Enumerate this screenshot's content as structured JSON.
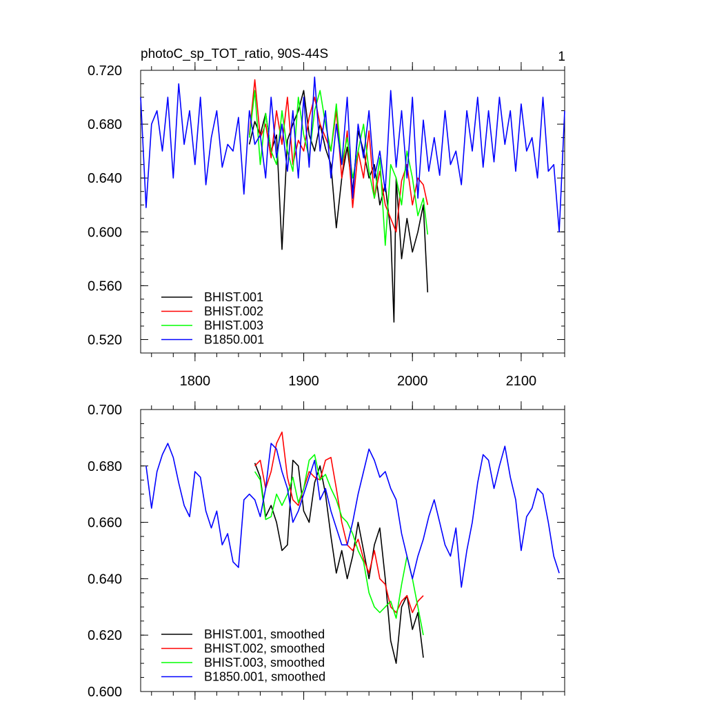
{
  "chart_data": [
    {
      "type": "line",
      "title": "photoC_sp_TOT_ratio, 90S-44S",
      "corner_label": "1",
      "xlabel": "",
      "ylabel": "",
      "xlim": [
        1750,
        2140
      ],
      "ylim": [
        0.51,
        0.72
      ],
      "yticks": [
        0.52,
        0.56,
        0.6,
        0.64,
        0.68,
        0.72
      ],
      "ytick_labels": [
        "0.520",
        "0.560",
        "0.600",
        "0.640",
        "0.680",
        "0.720"
      ],
      "xticks": [
        1800,
        1900,
        2000,
        2100
      ],
      "xtick_labels": [
        "1800",
        "1900",
        "2000",
        "2100"
      ],
      "legend_position": "bottom-left",
      "grid": false,
      "series": [
        {
          "name": "BHIST.001",
          "color": "#000000",
          "x": [
            1850,
            1855,
            1860,
            1865,
            1870,
            1875,
            1880,
            1885,
            1890,
            1895,
            1900,
            1905,
            1910,
            1915,
            1920,
            1925,
            1930,
            1935,
            1940,
            1945,
            1950,
            1955,
            1960,
            1965,
            1970,
            1975,
            1980,
            1983,
            1985,
            1990,
            1995,
            2000,
            2005,
            2010,
            2014
          ],
          "y": [
            0.665,
            0.682,
            0.672,
            0.688,
            0.66,
            0.672,
            0.587,
            0.668,
            0.68,
            0.69,
            0.705,
            0.672,
            0.66,
            0.68,
            0.662,
            0.65,
            0.603,
            0.64,
            0.663,
            0.63,
            0.675,
            0.66,
            0.64,
            0.65,
            0.62,
            0.635,
            0.6,
            0.533,
            0.64,
            0.58,
            0.61,
            0.585,
            0.6,
            0.62,
            0.555
          ]
        },
        {
          "name": "BHIST.002",
          "color": "#ff0000",
          "x": [
            1850,
            1855,
            1860,
            1865,
            1870,
            1875,
            1880,
            1885,
            1890,
            1895,
            1900,
            1905,
            1910,
            1915,
            1920,
            1925,
            1930,
            1935,
            1940,
            1945,
            1950,
            1955,
            1960,
            1965,
            1970,
            1975,
            1980,
            1985,
            1990,
            1995,
            2000,
            2005,
            2010,
            2014
          ],
          "y": [
            0.672,
            0.713,
            0.67,
            0.68,
            0.655,
            0.69,
            0.665,
            0.7,
            0.65,
            0.668,
            0.66,
            0.685,
            0.7,
            0.68,
            0.67,
            0.66,
            0.69,
            0.64,
            0.675,
            0.618,
            0.66,
            0.64,
            0.675,
            0.625,
            0.645,
            0.62,
            0.61,
            0.6,
            0.638,
            0.65,
            0.62,
            0.64,
            0.635,
            0.62
          ]
        },
        {
          "name": "BHIST.003",
          "color": "#00ff00",
          "x": [
            1850,
            1855,
            1860,
            1865,
            1870,
            1875,
            1880,
            1885,
            1890,
            1895,
            1900,
            1905,
            1910,
            1915,
            1920,
            1925,
            1930,
            1935,
            1940,
            1945,
            1950,
            1955,
            1960,
            1965,
            1970,
            1975,
            1980,
            1985,
            1990,
            1995,
            2000,
            2005,
            2010,
            2014
          ],
          "y": [
            0.67,
            0.705,
            0.65,
            0.688,
            0.66,
            0.65,
            0.69,
            0.66,
            0.645,
            0.7,
            0.672,
            0.655,
            0.69,
            0.705,
            0.68,
            0.66,
            0.695,
            0.65,
            0.67,
            0.64,
            0.66,
            0.68,
            0.645,
            0.625,
            0.655,
            0.59,
            0.65,
            0.64,
            0.62,
            0.66,
            0.64,
            0.612,
            0.625,
            0.598
          ]
        },
        {
          "name": "B1850.001",
          "color": "#0000ff",
          "x": [
            1750,
            1755,
            1760,
            1765,
            1770,
            1775,
            1780,
            1785,
            1790,
            1795,
            1800,
            1805,
            1810,
            1815,
            1820,
            1825,
            1830,
            1835,
            1840,
            1845,
            1850,
            1855,
            1860,
            1865,
            1870,
            1875,
            1880,
            1885,
            1890,
            1895,
            1900,
            1905,
            1910,
            1915,
            1920,
            1925,
            1930,
            1935,
            1940,
            1945,
            1950,
            1955,
            1960,
            1965,
            1970,
            1975,
            1980,
            1985,
            1990,
            1995,
            2000,
            2005,
            2010,
            2015,
            2020,
            2025,
            2030,
            2035,
            2040,
            2045,
            2050,
            2055,
            2060,
            2065,
            2070,
            2075,
            2080,
            2085,
            2090,
            2095,
            2100,
            2105,
            2110,
            2115,
            2120,
            2125,
            2130,
            2135,
            2140
          ],
          "y": [
            0.7,
            0.618,
            0.68,
            0.69,
            0.66,
            0.7,
            0.64,
            0.71,
            0.665,
            0.69,
            0.65,
            0.7,
            0.635,
            0.67,
            0.69,
            0.648,
            0.665,
            0.66,
            0.685,
            0.628,
            0.69,
            0.665,
            0.672,
            0.64,
            0.7,
            0.655,
            0.68,
            0.645,
            0.69,
            0.64,
            0.7,
            0.648,
            0.715,
            0.66,
            0.69,
            0.64,
            0.68,
            0.65,
            0.7,
            0.625,
            0.68,
            0.655,
            0.69,
            0.64,
            0.66,
            0.63,
            0.705,
            0.648,
            0.69,
            0.64,
            0.7,
            0.625,
            0.683,
            0.645,
            0.67,
            0.642,
            0.69,
            0.65,
            0.66,
            0.635,
            0.69,
            0.66,
            0.7,
            0.648,
            0.69,
            0.652,
            0.7,
            0.665,
            0.69,
            0.645,
            0.695,
            0.66,
            0.67,
            0.64,
            0.7,
            0.645,
            0.65,
            0.6,
            0.69
          ]
        }
      ]
    },
    {
      "type": "line",
      "title": "",
      "xlabel": "",
      "ylabel": "",
      "xlim": [
        1750,
        2140
      ],
      "ylim": [
        0.6,
        0.7
      ],
      "yticks": [
        0.6,
        0.62,
        0.64,
        0.66,
        0.68,
        0.7
      ],
      "ytick_labels": [
        "0.600",
        "0.620",
        "0.640",
        "0.660",
        "0.680",
        "0.700"
      ],
      "xticks": [
        1800,
        1900,
        2000,
        2100
      ],
      "legend_position": "bottom-left",
      "grid": false,
      "series": [
        {
          "name": "BHIST.001, smoothed",
          "color": "#000000",
          "x": [
            1855,
            1860,
            1865,
            1870,
            1875,
            1880,
            1885,
            1890,
            1895,
            1900,
            1905,
            1910,
            1915,
            1920,
            1925,
            1930,
            1935,
            1940,
            1945,
            1950,
            1955,
            1960,
            1965,
            1970,
            1975,
            1980,
            1985,
            1990,
            1995,
            2000,
            2005,
            2010
          ],
          "y": [
            0.681,
            0.676,
            0.662,
            0.666,
            0.66,
            0.65,
            0.652,
            0.682,
            0.68,
            0.664,
            0.66,
            0.674,
            0.68,
            0.67,
            0.655,
            0.642,
            0.65,
            0.64,
            0.648,
            0.66,
            0.65,
            0.64,
            0.652,
            0.658,
            0.64,
            0.618,
            0.61,
            0.63,
            0.634,
            0.622,
            0.628,
            0.612
          ]
        },
        {
          "name": "BHIST.002, smoothed",
          "color": "#ff0000",
          "x": [
            1855,
            1860,
            1865,
            1870,
            1875,
            1880,
            1885,
            1890,
            1895,
            1900,
            1905,
            1910,
            1915,
            1920,
            1925,
            1930,
            1935,
            1940,
            1945,
            1950,
            1955,
            1960,
            1965,
            1970,
            1975,
            1980,
            1985,
            1990,
            1995,
            2000,
            2005,
            2010
          ],
          "y": [
            0.68,
            0.682,
            0.672,
            0.678,
            0.688,
            0.692,
            0.676,
            0.668,
            0.666,
            0.672,
            0.678,
            0.676,
            0.675,
            0.682,
            0.683,
            0.672,
            0.66,
            0.652,
            0.65,
            0.654,
            0.647,
            0.642,
            0.65,
            0.64,
            0.638,
            0.63,
            0.628,
            0.632,
            0.634,
            0.628,
            0.632,
            0.634
          ]
        },
        {
          "name": "BHIST.003, smoothed",
          "color": "#00ff00",
          "x": [
            1855,
            1860,
            1865,
            1870,
            1875,
            1880,
            1885,
            1890,
            1895,
            1900,
            1905,
            1910,
            1915,
            1920,
            1925,
            1930,
            1935,
            1940,
            1945,
            1950,
            1955,
            1960,
            1965,
            1970,
            1975,
            1980,
            1985,
            1990,
            1995,
            2000,
            2005,
            2010
          ],
          "y": [
            0.678,
            0.675,
            0.661,
            0.662,
            0.67,
            0.666,
            0.67,
            0.676,
            0.667,
            0.672,
            0.682,
            0.684,
            0.675,
            0.677,
            0.672,
            0.668,
            0.662,
            0.66,
            0.656,
            0.65,
            0.646,
            0.635,
            0.63,
            0.628,
            0.63,
            0.632,
            0.626,
            0.638,
            0.648,
            0.64,
            0.63,
            0.62
          ]
        },
        {
          "name": "B1850.001, smoothed",
          "color": "#0000ff",
          "x": [
            1755,
            1760,
            1765,
            1770,
            1775,
            1780,
            1785,
            1790,
            1795,
            1800,
            1805,
            1810,
            1815,
            1820,
            1825,
            1830,
            1835,
            1840,
            1845,
            1850,
            1855,
            1860,
            1865,
            1870,
            1875,
            1880,
            1885,
            1890,
            1895,
            1900,
            1905,
            1910,
            1915,
            1920,
            1925,
            1930,
            1935,
            1940,
            1945,
            1950,
            1955,
            1960,
            1965,
            1970,
            1975,
            1980,
            1985,
            1990,
            1995,
            2000,
            2005,
            2010,
            2015,
            2020,
            2025,
            2030,
            2035,
            2040,
            2045,
            2050,
            2055,
            2060,
            2065,
            2070,
            2075,
            2080,
            2085,
            2090,
            2095,
            2100,
            2105,
            2110,
            2115,
            2120,
            2125,
            2130,
            2135
          ],
          "y": [
            0.68,
            0.665,
            0.678,
            0.684,
            0.688,
            0.683,
            0.674,
            0.666,
            0.662,
            0.678,
            0.676,
            0.664,
            0.658,
            0.664,
            0.652,
            0.656,
            0.646,
            0.644,
            0.668,
            0.67,
            0.668,
            0.662,
            0.672,
            0.688,
            0.686,
            0.678,
            0.672,
            0.66,
            0.664,
            0.67,
            0.676,
            0.682,
            0.668,
            0.672,
            0.664,
            0.658,
            0.652,
            0.652,
            0.66,
            0.67,
            0.678,
            0.686,
            0.682,
            0.676,
            0.678,
            0.672,
            0.668,
            0.656,
            0.648,
            0.64,
            0.648,
            0.654,
            0.662,
            0.668,
            0.66,
            0.652,
            0.648,
            0.658,
            0.637,
            0.65,
            0.66,
            0.674,
            0.684,
            0.682,
            0.672,
            0.68,
            0.687,
            0.676,
            0.668,
            0.65,
            0.662,
            0.665,
            0.672,
            0.67,
            0.66,
            0.648,
            0.642
          ]
        }
      ]
    }
  ]
}
